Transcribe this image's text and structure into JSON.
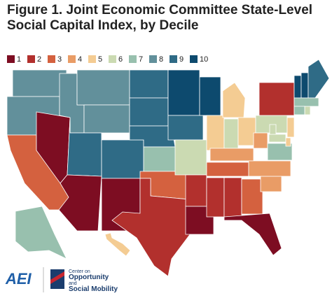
{
  "chart_data": {
    "type": "choropleth",
    "title": "Figure 1. Joint Economic Committee State-Level Social Capital Index, by Decile",
    "legend": [
      {
        "value": 1,
        "color": "#7d0d22"
      },
      {
        "value": 2,
        "color": "#b2302d"
      },
      {
        "value": 3,
        "color": "#d4613f"
      },
      {
        "value": 4,
        "color": "#e99c66"
      },
      {
        "value": 5,
        "color": "#f4cc93"
      },
      {
        "value": 6,
        "color": "#cbdab2"
      },
      {
        "value": 7,
        "color": "#98c0ae"
      },
      {
        "value": 8,
        "color": "#62909b"
      },
      {
        "value": 9,
        "color": "#2f6b86"
      },
      {
        "value": 10,
        "color": "#0d4a6e"
      }
    ],
    "regions": [
      8,
      8,
      3,
      1,
      8,
      8,
      8,
      9,
      9,
      1,
      1,
      9,
      9,
      9,
      7,
      3,
      2,
      10,
      9,
      6,
      2,
      1,
      10,
      5,
      5,
      6,
      5,
      4,
      3,
      2,
      2,
      3,
      1,
      4,
      4,
      6,
      4,
      7,
      6,
      2,
      5,
      5,
      6,
      10,
      10,
      9,
      7,
      7,
      6,
      7,
      5
    ]
  },
  "logos": {
    "aei": "AEI",
    "center": [
      "Center on",
      "Opportunity",
      "and",
      "Social Mobility"
    ]
  }
}
